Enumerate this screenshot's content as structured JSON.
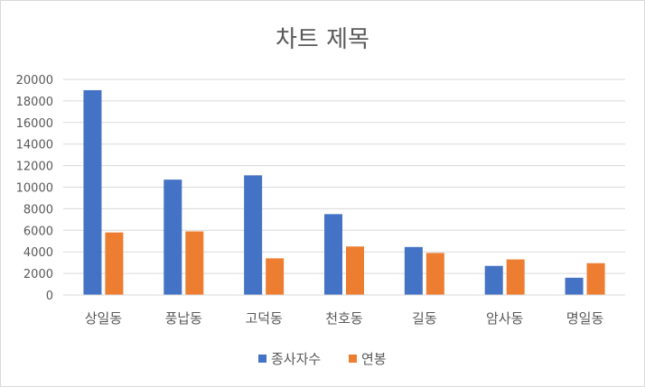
{
  "chart_data": {
    "type": "bar",
    "title": "차트 제목",
    "categories": [
      "상일동",
      "풍납동",
      "고덕동",
      "천호동",
      "길동",
      "암사동",
      "명일동"
    ],
    "series": [
      {
        "name": "종사자수",
        "color": "#4472c4",
        "values": [
          19000,
          10700,
          11100,
          7500,
          4450,
          2700,
          1600
        ]
      },
      {
        "name": "연봉",
        "color": "#ed7d31",
        "values": [
          5800,
          5900,
          3400,
          4500,
          3900,
          3300,
          2950
        ]
      }
    ],
    "ylim": [
      0,
      20000
    ],
    "yticks": [
      0,
      2000,
      4000,
      6000,
      8000,
      10000,
      12000,
      14000,
      16000,
      18000,
      20000
    ],
    "grid": true,
    "legend": "bottom",
    "xlabel": "",
    "ylabel": ""
  }
}
